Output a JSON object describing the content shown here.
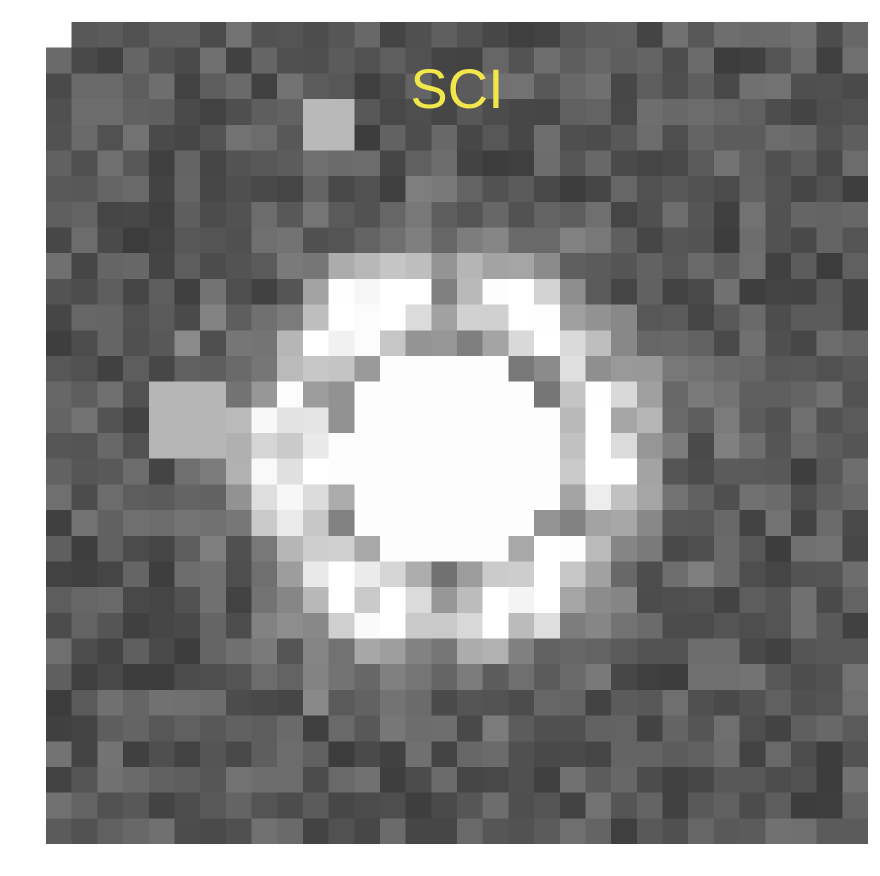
{
  "panel": {
    "label": "SCI",
    "label_color": "#f2e74a"
  },
  "image": {
    "description_type": "grayscale pixel cutout",
    "grid": 32,
    "background_tone": "#555555",
    "saturated_tone": "#ffffff"
  }
}
